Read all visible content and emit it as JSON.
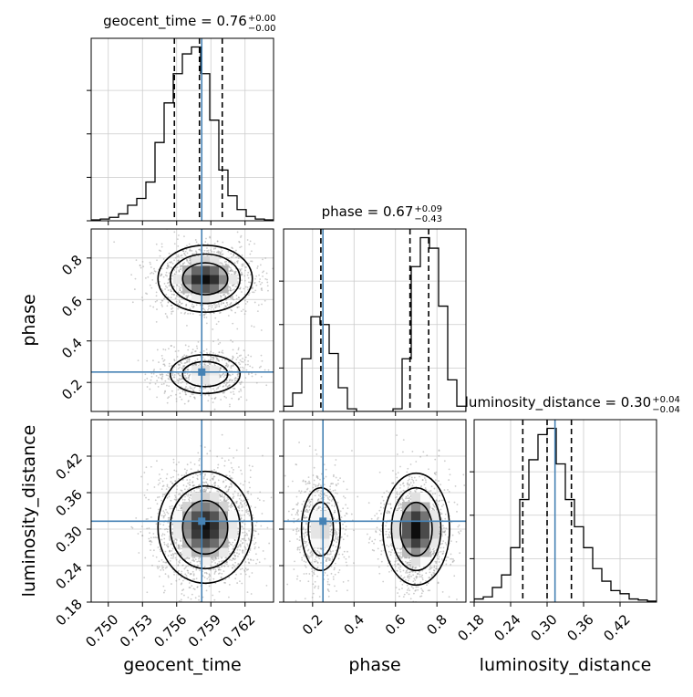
{
  "chart_data": {
    "type": "corner",
    "parameters": [
      "geocent_time",
      "phase",
      "luminosity_distance"
    ],
    "truths": {
      "geocent_time": 0.7582,
      "phase": 0.25,
      "luminosity_distance": 0.313
    },
    "truth_color": "#4682b4",
    "axis_ranges": {
      "geocent_time": [
        0.7485,
        0.7645
      ],
      "phase": [
        0.06,
        0.94
      ],
      "luminosity_distance": [
        0.18,
        0.48
      ]
    },
    "ticks": {
      "geocent_time": {
        "values": [
          0.75,
          0.753,
          0.756,
          0.759,
          0.762
        ],
        "labels": [
          "0.750",
          "0.753",
          "0.756",
          "0.759",
          "0.762"
        ]
      },
      "phase": {
        "values": [
          0.2,
          0.4,
          0.6,
          0.8
        ],
        "labels": [
          "0.2",
          "0.4",
          "0.6",
          "0.8"
        ]
      },
      "luminosity_distance": {
        "values": [
          0.18,
          0.24,
          0.3,
          0.36,
          0.42
        ],
        "labels": [
          "0.18",
          "0.24",
          "0.30",
          "0.36",
          "0.42"
        ]
      }
    },
    "titles": [
      {
        "param": "geocent_time",
        "label": "geocent_time = 0.76",
        "upper": "+0.00",
        "lower": "−0.00"
      },
      {
        "param": "phase",
        "label": "phase = 0.67",
        "upper": "+0.09",
        "lower": "−0.43"
      },
      {
        "param": "luminosity_distance",
        "label": "luminosity_distance = 0.30",
        "upper": "+0.04",
        "lower": "−0.04"
      }
    ],
    "quantiles": {
      "geocent_time": [
        0.7558,
        0.758,
        0.76
      ],
      "phase": [
        0.24,
        0.67,
        0.76
      ],
      "luminosity_distance": [
        0.26,
        0.3,
        0.34
      ]
    },
    "histograms": {
      "geocent_time": {
        "edges": [
          0.7485,
          0.7493,
          0.7501,
          0.7509,
          0.7517,
          0.7525,
          0.7533,
          0.7541,
          0.7549,
          0.7557,
          0.7565,
          0.7573,
          0.7581,
          0.7589,
          0.7597,
          0.7605,
          0.7613,
          0.7621,
          0.7629,
          0.7637,
          0.7645
        ],
        "counts": [
          1,
          2,
          4,
          8,
          18,
          26,
          45,
          91,
          137,
          171,
          194,
          202,
          171,
          117,
          59,
          29,
          13,
          5,
          2,
          1
        ]
      },
      "phase": {
        "edges": [
          0.06,
          0.104,
          0.148,
          0.192,
          0.236,
          0.28,
          0.324,
          0.368,
          0.412,
          0.456,
          0.5,
          0.544,
          0.588,
          0.632,
          0.676,
          0.72,
          0.764,
          0.808,
          0.852,
          0.896,
          0.94
        ],
        "counts": [
          2,
          7,
          20,
          36,
          33,
          22,
          9,
          1,
          0,
          0,
          0,
          0,
          1,
          20,
          55,
          66,
          62,
          40,
          12,
          2
        ]
      },
      "luminosity_distance": {
        "edges": [
          0.18,
          0.195,
          0.21,
          0.225,
          0.24,
          0.255,
          0.27,
          0.285,
          0.3,
          0.315,
          0.33,
          0.345,
          0.36,
          0.375,
          0.39,
          0.405,
          0.42,
          0.435,
          0.45,
          0.465,
          0.48
        ],
        "counts": [
          3,
          5,
          14,
          26,
          52,
          98,
          136,
          160,
          166,
          132,
          98,
          72,
          52,
          32,
          20,
          11,
          8,
          3,
          2,
          1
        ]
      }
    },
    "joint_modes": [
      {
        "x": "geocent_time",
        "y": "phase",
        "modes": [
          {
            "cx": 0.7585,
            "cy": 0.7,
            "sx": 0.0018,
            "sy": 0.07,
            "w": 0.68
          },
          {
            "cx": 0.7585,
            "cy": 0.24,
            "sx": 0.0018,
            "sy": 0.055,
            "w": 0.32
          }
        ]
      },
      {
        "x": "geocent_time",
        "y": "luminosity_distance",
        "modes": [
          {
            "cx": 0.7585,
            "cy": 0.303,
            "sx": 0.0018,
            "sy": 0.04,
            "w": 1.0
          }
        ]
      },
      {
        "x": "phase",
        "y": "luminosity_distance",
        "modes": [
          {
            "cx": 0.7,
            "cy": 0.3,
            "sx": 0.07,
            "sy": 0.04,
            "w": 0.68
          },
          {
            "cx": 0.24,
            "cy": 0.3,
            "sx": 0.055,
            "sy": 0.04,
            "w": 0.32
          }
        ]
      }
    ],
    "grid": true
  }
}
